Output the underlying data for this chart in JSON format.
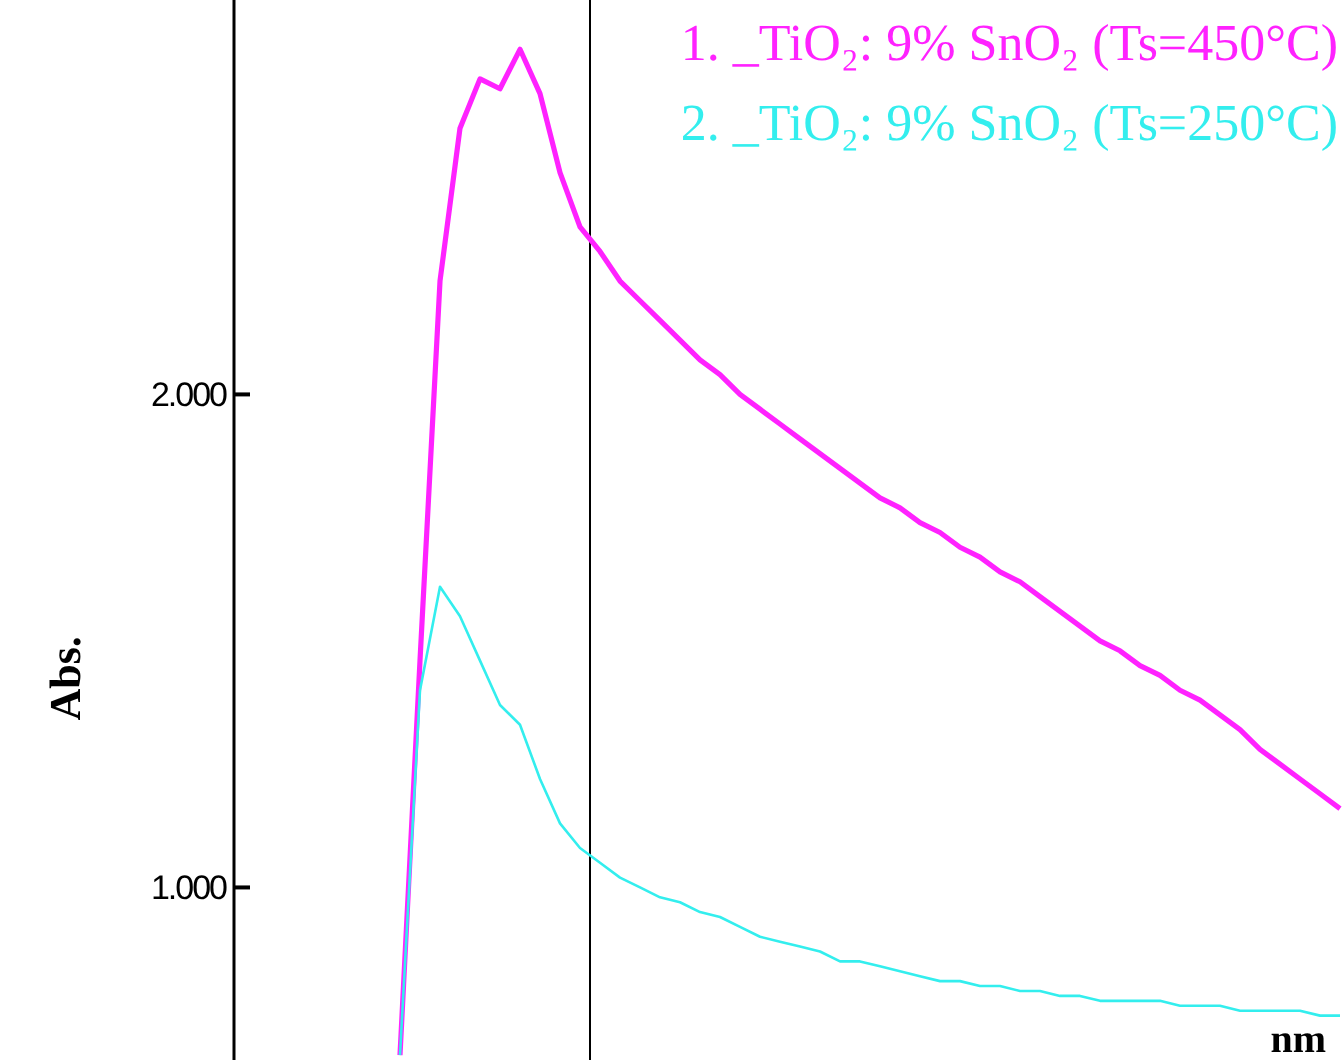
{
  "chart_data": {
    "type": "line",
    "xlabel": "nm",
    "ylabel": "Abs.",
    "categories": [
      null,
      null,
      null,
      null,
      null,
      null,
      null,
      null,
      null,
      null,
      null,
      null,
      null,
      null,
      null,
      null,
      null,
      null,
      null,
      null,
      null,
      null,
      null,
      null,
      null,
      null,
      null,
      null,
      null,
      null,
      null,
      null,
      null,
      null,
      null,
      null,
      null,
      null,
      null,
      null,
      null,
      null,
      null,
      null,
      null,
      null,
      null,
      null,
      null,
      null,
      null,
      null,
      null,
      null,
      null,
      null
    ],
    "series": [
      {
        "name": "1. _TiO₂: 9% SnO₂ (Ts=450°C)",
        "color": "#ff22ff",
        "values": [
          null,
          null,
          null,
          null,
          null,
          null,
          null,
          null,
          0.66,
          1.46,
          2.23,
          2.54,
          2.64,
          2.62,
          2.7,
          2.61,
          2.45,
          2.34,
          2.29,
          2.23,
          2.19,
          2.15,
          2.11,
          2.07,
          2.04,
          2.0,
          1.97,
          1.94,
          1.91,
          1.88,
          1.85,
          1.82,
          1.79,
          1.77,
          1.74,
          1.72,
          1.69,
          1.67,
          1.64,
          1.62,
          1.59,
          1.56,
          1.53,
          1.5,
          1.48,
          1.45,
          1.43,
          1.4,
          1.38,
          1.35,
          1.32,
          1.28,
          1.25,
          1.22,
          1.19,
          1.16
        ]
      },
      {
        "name": "2. _TiO₂: 9% SnO₂ (Ts=250°C)",
        "color": "#33eeee",
        "values": [
          null,
          null,
          null,
          null,
          null,
          null,
          null,
          null,
          0.66,
          1.4,
          1.61,
          1.55,
          1.46,
          1.37,
          1.33,
          1.22,
          1.13,
          1.08,
          1.05,
          1.02,
          1.0,
          0.98,
          0.97,
          0.95,
          0.94,
          0.92,
          0.9,
          0.89,
          0.88,
          0.87,
          0.85,
          0.85,
          0.84,
          0.83,
          0.82,
          0.81,
          0.81,
          0.8,
          0.8,
          0.79,
          0.79,
          0.78,
          0.78,
          0.77,
          0.77,
          0.77,
          0.77,
          0.76,
          0.76,
          0.76,
          0.75,
          0.75,
          0.75,
          0.75,
          0.74,
          0.74
        ]
      }
    ],
    "ylim": [
      0.65,
      2.8
    ],
    "yticks": [
      {
        "value": 1,
        "label": "1.000"
      },
      {
        "value": 2,
        "label": "2.000"
      }
    ],
    "grid": false,
    "legend": "top right",
    "marker": "none",
    "line_style": "solid"
  }
}
